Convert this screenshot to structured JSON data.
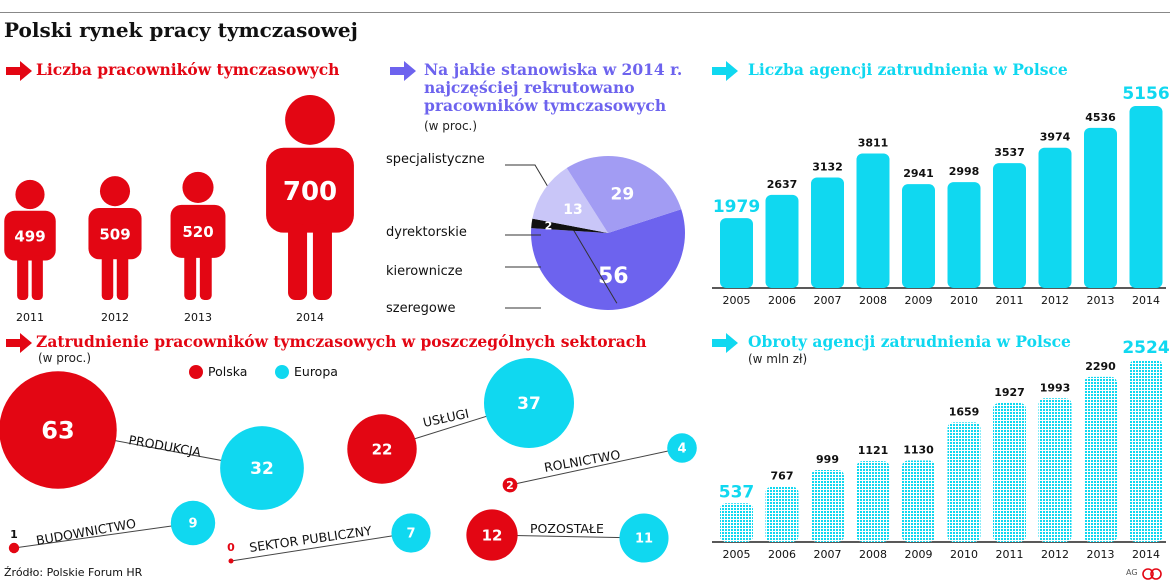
{
  "title": "Polski rynek pracy tymczasowej",
  "source": "Źródło: Polskie Forum HR",
  "credit": "AG",
  "colors": {
    "red": "#e30613",
    "purple": "#6d63ee",
    "cyan": "#10d8f0"
  },
  "chart_data": [
    {
      "id": "workers",
      "type": "bar",
      "title": "Liczba pracowników tymczasowych",
      "categories": [
        "2011",
        "2012",
        "2013",
        "2014"
      ],
      "values": [
        499,
        509,
        520,
        700
      ],
      "value_labels": [
        "499",
        "509",
        "520",
        "700"
      ]
    },
    {
      "id": "positions",
      "type": "pie",
      "title": "Na jakie stanowiska w 2014 r. najczęściej rekrutowano pracowników tymczasowych",
      "subtitle": "(w proc.)",
      "labels": [
        "specjalistyczne",
        "dyrektorskie",
        "kierownicze",
        "szeregowe"
      ],
      "values": [
        56,
        2,
        13,
        29
      ],
      "colors": [
        "#6d63ee",
        "#111111",
        "#c9c6f8",
        "#a29cf3"
      ]
    },
    {
      "id": "agencies",
      "type": "bar",
      "title": "Liczba agencji zatrudnienia w Polsce",
      "categories": [
        "2005",
        "2006",
        "2007",
        "2008",
        "2009",
        "2010",
        "2011",
        "2012",
        "2013",
        "2014"
      ],
      "values": [
        1979,
        2637,
        3132,
        3811,
        2941,
        2998,
        3537,
        3974,
        4536,
        5156
      ]
    },
    {
      "id": "turnover",
      "type": "bar",
      "title": "Obroty agencji zatrudnienia w Polsce",
      "subtitle": "(w mln zł)",
      "categories": [
        "2005",
        "2006",
        "2007",
        "2008",
        "2009",
        "2010",
        "2011",
        "2012",
        "2013",
        "2014"
      ],
      "values": [
        537,
        767,
        999,
        1121,
        1130,
        1659,
        1927,
        1993,
        2290,
        2524
      ]
    },
    {
      "id": "sectors",
      "type": "bubble",
      "title": "Zatrudnienie pracowników tymczasowych w poszczególnych sektorach",
      "subtitle": "(w proc.)",
      "legend": [
        "Polska",
        "Europa"
      ],
      "sectors": [
        {
          "name": "PRODUKCJA",
          "polska": 63,
          "europa": 32
        },
        {
          "name": "USŁUGI",
          "polska": 22,
          "europa": 37
        },
        {
          "name": "ROLNICTWO",
          "polska": 2,
          "europa": 4
        },
        {
          "name": "BUDOWNICTWO",
          "polska": 1,
          "europa": 9
        },
        {
          "name": "SEKTOR PUBLICZNY",
          "polska": 0,
          "europa": 7
        },
        {
          "name": "POZOSTAŁE",
          "polska": 12,
          "europa": 11
        }
      ]
    }
  ]
}
